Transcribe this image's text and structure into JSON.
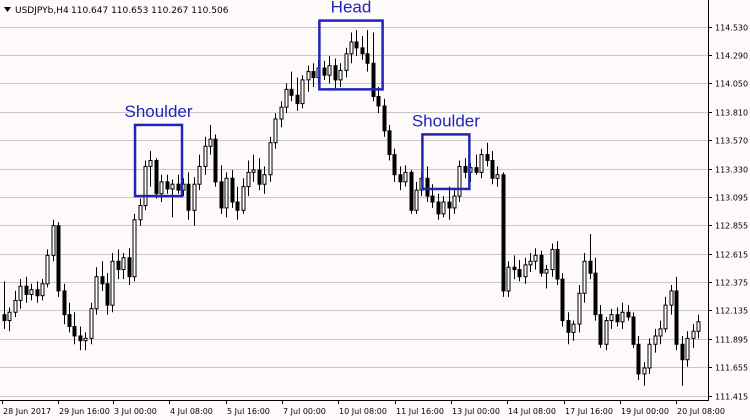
{
  "header": {
    "symbol_label": "USDJPYb,H4",
    "ohlc": "110.647 110.653 110.267 110.506"
  },
  "colors": {
    "background": "#fffafa",
    "grid": "#c8c8c8",
    "candle_up_body": "#ffffff",
    "candle_down_body": "#000000",
    "candle_outline": "#000000",
    "annotation": "#1f25b8",
    "axis": "#000000"
  },
  "chart_data": {
    "type": "candlestick",
    "title": "",
    "xlabel": "",
    "ylabel": "",
    "grid": true,
    "ylim": [
      111.38,
      114.72
    ],
    "y_ticks": [
      "114.530",
      "114.290",
      "114.050",
      "113.810",
      "113.570",
      "113.330",
      "113.095",
      "112.855",
      "112.615",
      "112.375",
      "112.135",
      "111.895",
      "111.655",
      "111.415"
    ],
    "x_ticks": [
      "28 Jun 2017",
      "29 Jun 16:00",
      "3 Jul 00:00",
      "4 Jul 08:00",
      "5 Jul 16:00",
      "7 Jul 00:00",
      "10 Jul 08:00",
      "11 Jul 16:00",
      "13 Jul 00:00",
      "14 Jul 08:00",
      "17 Jul 16:00",
      "19 Jul 00:00",
      "20 Jul 08:00"
    ],
    "candles": [
      {
        "o": 112.1,
        "h": 112.38,
        "l": 111.98,
        "c": 112.05
      },
      {
        "o": 112.05,
        "h": 112.16,
        "l": 111.96,
        "c": 112.12
      },
      {
        "o": 112.12,
        "h": 112.3,
        "l": 112.08,
        "c": 112.22
      },
      {
        "o": 112.22,
        "h": 112.4,
        "l": 112.15,
        "c": 112.34
      },
      {
        "o": 112.34,
        "h": 112.42,
        "l": 112.2,
        "c": 112.27
      },
      {
        "o": 112.27,
        "h": 112.36,
        "l": 112.22,
        "c": 112.31
      },
      {
        "o": 112.31,
        "h": 112.38,
        "l": 112.2,
        "c": 112.26
      },
      {
        "o": 112.26,
        "h": 112.4,
        "l": 112.22,
        "c": 112.36
      },
      {
        "o": 112.36,
        "h": 112.65,
        "l": 112.33,
        "c": 112.6
      },
      {
        "o": 112.6,
        "h": 112.9,
        "l": 112.55,
        "c": 112.85
      },
      {
        "o": 112.85,
        "h": 112.88,
        "l": 112.25,
        "c": 112.3
      },
      {
        "o": 112.3,
        "h": 112.36,
        "l": 112.02,
        "c": 112.1
      },
      {
        "o": 112.1,
        "h": 112.2,
        "l": 111.95,
        "c": 112.0
      },
      {
        "o": 112.0,
        "h": 112.12,
        "l": 111.85,
        "c": 111.92
      },
      {
        "o": 111.92,
        "h": 112.0,
        "l": 111.8,
        "c": 111.88
      },
      {
        "o": 111.88,
        "h": 111.95,
        "l": 111.8,
        "c": 111.9
      },
      {
        "o": 111.9,
        "h": 112.2,
        "l": 111.85,
        "c": 112.15
      },
      {
        "o": 112.15,
        "h": 112.5,
        "l": 112.1,
        "c": 112.42
      },
      {
        "o": 112.42,
        "h": 112.55,
        "l": 112.3,
        "c": 112.36
      },
      {
        "o": 112.36,
        "h": 112.45,
        "l": 112.1,
        "c": 112.18
      },
      {
        "o": 112.18,
        "h": 112.62,
        "l": 112.12,
        "c": 112.55
      },
      {
        "o": 112.55,
        "h": 112.65,
        "l": 112.4,
        "c": 112.48
      },
      {
        "o": 112.48,
        "h": 112.62,
        "l": 112.4,
        "c": 112.58
      },
      {
        "o": 112.58,
        "h": 112.66,
        "l": 112.35,
        "c": 112.42
      },
      {
        "o": 112.42,
        "h": 112.95,
        "l": 112.38,
        "c": 112.9
      },
      {
        "o": 112.9,
        "h": 113.08,
        "l": 112.85,
        "c": 113.02
      },
      {
        "o": 113.02,
        "h": 113.4,
        "l": 112.98,
        "c": 113.35
      },
      {
        "o": 113.35,
        "h": 113.48,
        "l": 113.18,
        "c": 113.4
      },
      {
        "o": 113.4,
        "h": 113.42,
        "l": 113.08,
        "c": 113.12
      },
      {
        "o": 113.12,
        "h": 113.28,
        "l": 113.05,
        "c": 113.22
      },
      {
        "o": 113.22,
        "h": 113.28,
        "l": 113.12,
        "c": 113.16
      },
      {
        "o": 113.16,
        "h": 113.24,
        "l": 112.92,
        "c": 113.2
      },
      {
        "o": 113.2,
        "h": 113.28,
        "l": 113.12,
        "c": 113.15
      },
      {
        "o": 113.15,
        "h": 113.25,
        "l": 113.1,
        "c": 113.2
      },
      {
        "o": 113.2,
        "h": 113.3,
        "l": 112.9,
        "c": 112.98
      },
      {
        "o": 112.98,
        "h": 113.26,
        "l": 112.85,
        "c": 113.2
      },
      {
        "o": 113.2,
        "h": 113.45,
        "l": 113.15,
        "c": 113.35
      },
      {
        "o": 113.35,
        "h": 113.6,
        "l": 113.28,
        "c": 113.52
      },
      {
        "o": 113.52,
        "h": 113.7,
        "l": 113.45,
        "c": 113.58
      },
      {
        "o": 113.58,
        "h": 113.62,
        "l": 113.18,
        "c": 113.22
      },
      {
        "o": 113.22,
        "h": 113.36,
        "l": 112.95,
        "c": 113.0
      },
      {
        "o": 113.0,
        "h": 113.3,
        "l": 112.92,
        "c": 113.25
      },
      {
        "o": 113.25,
        "h": 113.32,
        "l": 113.0,
        "c": 113.05
      },
      {
        "o": 113.05,
        "h": 113.18,
        "l": 112.9,
        "c": 112.98
      },
      {
        "o": 112.98,
        "h": 113.25,
        "l": 112.95,
        "c": 113.18
      },
      {
        "o": 113.18,
        "h": 113.4,
        "l": 113.1,
        "c": 113.3
      },
      {
        "o": 113.3,
        "h": 113.45,
        "l": 113.22,
        "c": 113.32
      },
      {
        "o": 113.32,
        "h": 113.42,
        "l": 113.15,
        "c": 113.2
      },
      {
        "o": 113.2,
        "h": 113.35,
        "l": 113.12,
        "c": 113.28
      },
      {
        "o": 113.28,
        "h": 113.6,
        "l": 113.22,
        "c": 113.55
      },
      {
        "o": 113.55,
        "h": 113.8,
        "l": 113.5,
        "c": 113.75
      },
      {
        "o": 113.75,
        "h": 113.9,
        "l": 113.68,
        "c": 113.85
      },
      {
        "o": 113.85,
        "h": 114.05,
        "l": 113.8,
        "c": 114.0
      },
      {
        "o": 114.0,
        "h": 114.15,
        "l": 113.9,
        "c": 113.95
      },
      {
        "o": 113.95,
        "h": 114.1,
        "l": 113.82,
        "c": 113.88
      },
      {
        "o": 113.88,
        "h": 114.12,
        "l": 113.84,
        "c": 114.08
      },
      {
        "o": 114.08,
        "h": 114.2,
        "l": 113.98,
        "c": 114.15
      },
      {
        "o": 114.15,
        "h": 114.22,
        "l": 114.02,
        "c": 114.1
      },
      {
        "o": 114.1,
        "h": 114.25,
        "l": 114.05,
        "c": 114.18
      },
      {
        "o": 114.18,
        "h": 114.24,
        "l": 114.08,
        "c": 114.12
      },
      {
        "o": 114.12,
        "h": 114.28,
        "l": 114.05,
        "c": 114.2
      },
      {
        "o": 114.2,
        "h": 114.26,
        "l": 114.0,
        "c": 114.08
      },
      {
        "o": 114.08,
        "h": 114.22,
        "l": 114.02,
        "c": 114.16
      },
      {
        "o": 114.16,
        "h": 114.35,
        "l": 114.1,
        "c": 114.3
      },
      {
        "o": 114.3,
        "h": 114.48,
        "l": 114.22,
        "c": 114.4
      },
      {
        "o": 114.4,
        "h": 114.5,
        "l": 114.28,
        "c": 114.35
      },
      {
        "o": 114.35,
        "h": 114.45,
        "l": 114.25,
        "c": 114.3
      },
      {
        "o": 114.3,
        "h": 114.5,
        "l": 114.15,
        "c": 114.22
      },
      {
        "o": 114.22,
        "h": 114.48,
        "l": 113.9,
        "c": 113.94
      },
      {
        "o": 113.94,
        "h": 114.02,
        "l": 113.8,
        "c": 113.86
      },
      {
        "o": 113.86,
        "h": 113.92,
        "l": 113.6,
        "c": 113.65
      },
      {
        "o": 113.65,
        "h": 113.7,
        "l": 113.4,
        "c": 113.45
      },
      {
        "o": 113.45,
        "h": 113.5,
        "l": 113.22,
        "c": 113.28
      },
      {
        "o": 113.28,
        "h": 113.35,
        "l": 113.15,
        "c": 113.22
      },
      {
        "o": 113.22,
        "h": 113.36,
        "l": 113.18,
        "c": 113.3
      },
      {
        "o": 113.3,
        "h": 113.32,
        "l": 112.95,
        "c": 112.98
      },
      {
        "o": 112.98,
        "h": 113.22,
        "l": 112.95,
        "c": 113.15
      },
      {
        "o": 113.15,
        "h": 113.3,
        "l": 113.1,
        "c": 113.25
      },
      {
        "o": 113.25,
        "h": 113.35,
        "l": 113.05,
        "c": 113.1
      },
      {
        "o": 113.1,
        "h": 113.2,
        "l": 113.0,
        "c": 113.05
      },
      {
        "o": 113.05,
        "h": 113.12,
        "l": 112.9,
        "c": 112.95
      },
      {
        "o": 112.95,
        "h": 113.1,
        "l": 112.92,
        "c": 113.05
      },
      {
        "o": 113.05,
        "h": 113.18,
        "l": 112.9,
        "c": 113.0
      },
      {
        "o": 113.0,
        "h": 113.15,
        "l": 112.95,
        "c": 113.1
      },
      {
        "o": 113.1,
        "h": 113.4,
        "l": 113.05,
        "c": 113.35
      },
      {
        "o": 113.35,
        "h": 113.42,
        "l": 113.25,
        "c": 113.3
      },
      {
        "o": 113.3,
        "h": 113.38,
        "l": 113.22,
        "c": 113.34
      },
      {
        "o": 113.34,
        "h": 113.45,
        "l": 113.28,
        "c": 113.3
      },
      {
        "o": 113.3,
        "h": 113.5,
        "l": 113.25,
        "c": 113.45
      },
      {
        "o": 113.45,
        "h": 113.55,
        "l": 113.35,
        "c": 113.4
      },
      {
        "o": 113.4,
        "h": 113.48,
        "l": 113.2,
        "c": 113.25
      },
      {
        "o": 113.25,
        "h": 113.35,
        "l": 113.18,
        "c": 113.28
      },
      {
        "o": 113.28,
        "h": 113.3,
        "l": 112.25,
        "c": 112.3
      },
      {
        "o": 112.3,
        "h": 112.55,
        "l": 112.25,
        "c": 112.5
      },
      {
        "o": 112.5,
        "h": 112.6,
        "l": 112.4,
        "c": 112.48
      },
      {
        "o": 112.48,
        "h": 112.56,
        "l": 112.38,
        "c": 112.42
      },
      {
        "o": 112.42,
        "h": 112.58,
        "l": 112.36,
        "c": 112.52
      },
      {
        "o": 112.52,
        "h": 112.62,
        "l": 112.46,
        "c": 112.55
      },
      {
        "o": 112.55,
        "h": 112.66,
        "l": 112.48,
        "c": 112.6
      },
      {
        "o": 112.6,
        "h": 112.64,
        "l": 112.42,
        "c": 112.45
      },
      {
        "o": 112.45,
        "h": 112.52,
        "l": 112.32,
        "c": 112.48
      },
      {
        "o": 112.48,
        "h": 112.7,
        "l": 112.42,
        "c": 112.65
      },
      {
        "o": 112.65,
        "h": 112.72,
        "l": 112.35,
        "c": 112.4
      },
      {
        "o": 112.4,
        "h": 112.45,
        "l": 112.0,
        "c": 112.05
      },
      {
        "o": 112.05,
        "h": 112.12,
        "l": 111.85,
        "c": 111.95
      },
      {
        "o": 111.95,
        "h": 112.05,
        "l": 111.88,
        "c": 112.02
      },
      {
        "o": 112.02,
        "h": 112.35,
        "l": 111.95,
        "c": 112.28
      },
      {
        "o": 112.28,
        "h": 112.62,
        "l": 112.2,
        "c": 112.55
      },
      {
        "o": 112.55,
        "h": 112.78,
        "l": 112.4,
        "c": 112.45
      },
      {
        "o": 112.45,
        "h": 112.58,
        "l": 112.05,
        "c": 112.1
      },
      {
        "o": 112.1,
        "h": 112.18,
        "l": 111.82,
        "c": 111.85
      },
      {
        "o": 111.85,
        "h": 112.08,
        "l": 111.8,
        "c": 112.05
      },
      {
        "o": 112.05,
        "h": 112.15,
        "l": 111.98,
        "c": 112.1
      },
      {
        "o": 112.1,
        "h": 112.16,
        "l": 112.0,
        "c": 112.04
      },
      {
        "o": 112.04,
        "h": 112.2,
        "l": 111.98,
        "c": 112.12
      },
      {
        "o": 112.12,
        "h": 112.18,
        "l": 112.05,
        "c": 112.08
      },
      {
        "o": 112.08,
        "h": 112.12,
        "l": 111.82,
        "c": 111.85
      },
      {
        "o": 111.85,
        "h": 111.92,
        "l": 111.55,
        "c": 111.6
      },
      {
        "o": 111.6,
        "h": 111.7,
        "l": 111.5,
        "c": 111.65
      },
      {
        "o": 111.65,
        "h": 111.9,
        "l": 111.6,
        "c": 111.85
      },
      {
        "o": 111.85,
        "h": 111.98,
        "l": 111.78,
        "c": 111.92
      },
      {
        "o": 111.92,
        "h": 112.05,
        "l": 111.85,
        "c": 111.98
      },
      {
        "o": 111.98,
        "h": 112.25,
        "l": 111.95,
        "c": 112.18
      },
      {
        "o": 112.18,
        "h": 112.35,
        "l": 112.1,
        "c": 112.3
      },
      {
        "o": 112.3,
        "h": 112.42,
        "l": 111.8,
        "c": 111.85
      },
      {
        "o": 111.85,
        "h": 111.92,
        "l": 111.5,
        "c": 111.72
      },
      {
        "o": 111.72,
        "h": 111.96,
        "l": 111.66,
        "c": 111.9
      },
      {
        "o": 111.9,
        "h": 112.02,
        "l": 111.82,
        "c": 111.96
      },
      {
        "o": 111.96,
        "h": 112.1,
        "l": 111.9,
        "c": 112.04
      }
    ],
    "annotations": [
      {
        "label": "Shoulder",
        "x_from": 25,
        "x_to": 32,
        "y_low": 113.1,
        "y_high": 113.7
      },
      {
        "label": "Head",
        "x_from": 59,
        "x_to": 69,
        "y_low": 114.0,
        "y_high": 114.58
      },
      {
        "label": "Shoulder",
        "x_from": 78,
        "x_to": 85,
        "y_low": 113.16,
        "y_high": 113.62
      }
    ]
  }
}
